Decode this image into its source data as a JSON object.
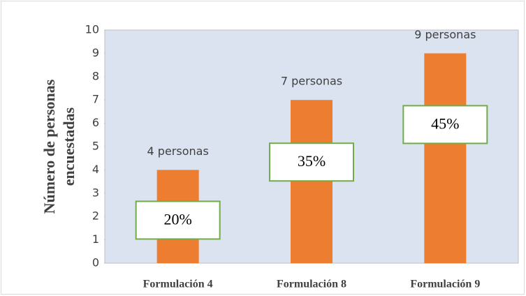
{
  "chart_data": {
    "type": "bar",
    "ylabel": [
      "Número de personas",
      "encuestadas"
    ],
    "categories": [
      "Formulación 4",
      "Formulación 8",
      "Formulación 9"
    ],
    "values": [
      4,
      7,
      9
    ],
    "value_labels": [
      "4 personas",
      "7 personas",
      "9 personas"
    ],
    "percent_labels": [
      "20%",
      "35%",
      "45%"
    ],
    "color": "#ed7d31",
    "ylim": [
      0,
      10
    ],
    "yticks": [
      0,
      1,
      2,
      3,
      4,
      5,
      6,
      7,
      8,
      9,
      10
    ]
  }
}
